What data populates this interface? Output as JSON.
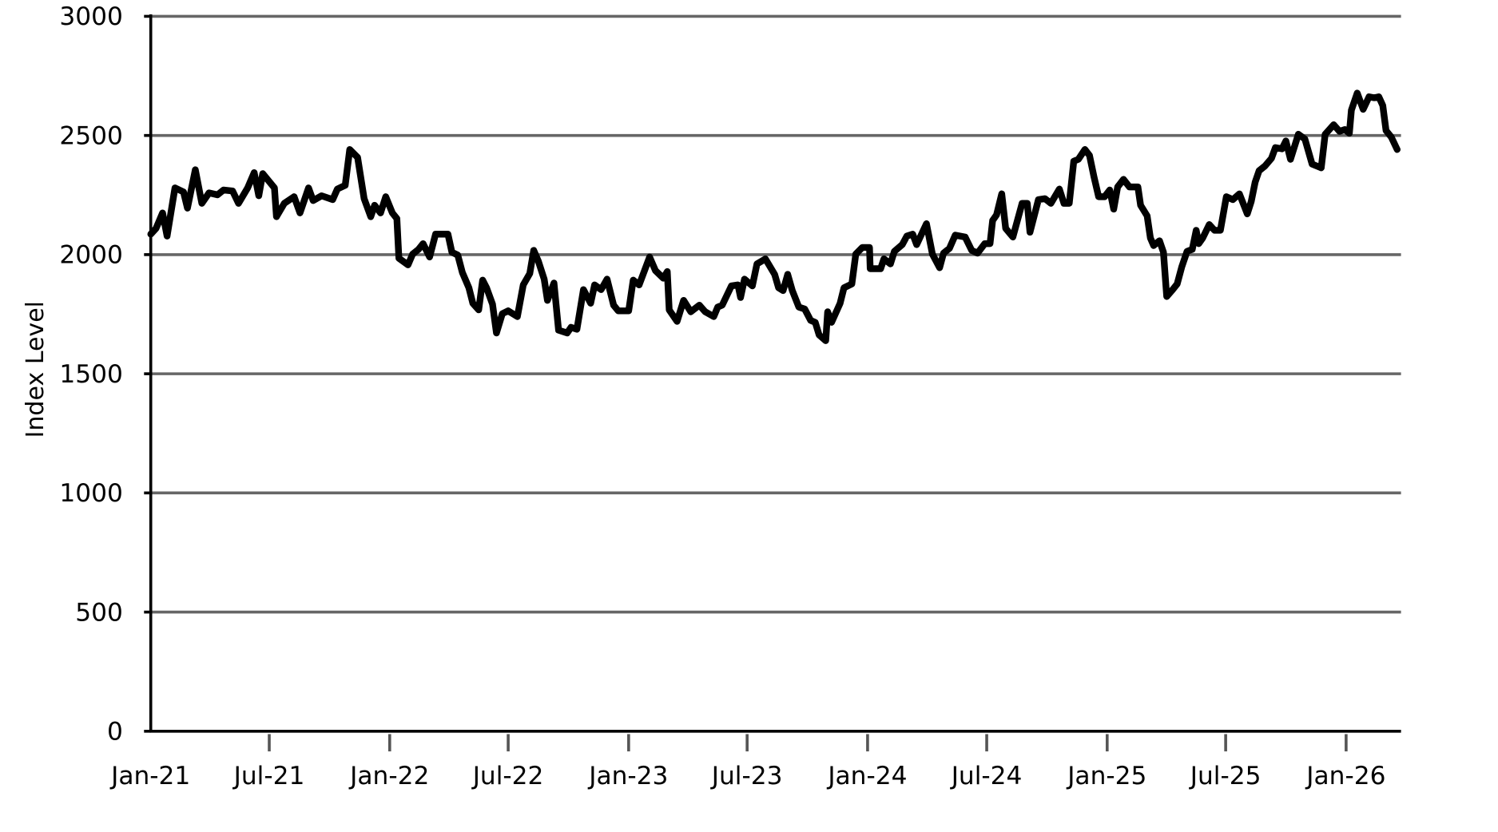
{
  "chart_data": {
    "type": "line",
    "title": "",
    "xlabel": "",
    "ylabel": "Index Level",
    "ylim": [
      0,
      3000
    ],
    "yticks": [
      0,
      500,
      1000,
      1500,
      2000,
      2500,
      3000
    ],
    "xticks": [
      {
        "date": "2021-01-01",
        "label": "Jan-21"
      },
      {
        "date": "2021-07-01",
        "label": "Jul-21"
      },
      {
        "date": "2022-01-01",
        "label": "Jan-22"
      },
      {
        "date": "2022-07-01",
        "label": "Jul-22"
      },
      {
        "date": "2023-01-01",
        "label": "Jan-23"
      },
      {
        "date": "2023-07-01",
        "label": "Jul-23"
      },
      {
        "date": "2024-01-01",
        "label": "Jan-24"
      },
      {
        "date": "2024-07-01",
        "label": "Jul-24"
      },
      {
        "date": "2025-01-01",
        "label": "Jan-25"
      },
      {
        "date": "2025-07-01",
        "label": "Jul-25"
      },
      {
        "date": "2026-01-01",
        "label": "Jan-26"
      }
    ],
    "xlim": [
      "2021-01-01",
      "2026-03-20"
    ],
    "grid": "horizontal",
    "line_color": "#000000",
    "grid_color": "#666666",
    "series": [
      {
        "points": [
          [
            "2021-01-01",
            2086
          ],
          [
            "2021-01-09",
            2110
          ],
          [
            "2021-01-19",
            2175
          ],
          [
            "2021-01-26",
            2078
          ],
          [
            "2021-02-07",
            2280
          ],
          [
            "2021-02-20",
            2263
          ],
          [
            "2021-02-26",
            2195
          ],
          [
            "2021-03-10",
            2356
          ],
          [
            "2021-03-20",
            2215
          ],
          [
            "2021-03-31",
            2259
          ],
          [
            "2021-04-13",
            2251
          ],
          [
            "2021-04-22",
            2271
          ],
          [
            "2021-05-06",
            2267
          ],
          [
            "2021-05-15",
            2215
          ],
          [
            "2021-05-29",
            2280
          ],
          [
            "2021-06-08",
            2344
          ],
          [
            "2021-06-15",
            2247
          ],
          [
            "2021-06-21",
            2340
          ],
          [
            "2021-07-09",
            2280
          ],
          [
            "2021-07-12",
            2159
          ],
          [
            "2021-07-24",
            2215
          ],
          [
            "2021-08-08",
            2243
          ],
          [
            "2021-08-17",
            2175
          ],
          [
            "2021-08-30",
            2280
          ],
          [
            "2021-09-06",
            2227
          ],
          [
            "2021-09-19",
            2247
          ],
          [
            "2021-10-06",
            2231
          ],
          [
            "2021-10-13",
            2275
          ],
          [
            "2021-10-25",
            2291
          ],
          [
            "2021-11-01",
            2441
          ],
          [
            "2021-11-13",
            2408
          ],
          [
            "2021-11-23",
            2235
          ],
          [
            "2021-12-03",
            2159
          ],
          [
            "2021-12-09",
            2207
          ],
          [
            "2021-12-18",
            2175
          ],
          [
            "2021-12-26",
            2243
          ],
          [
            "2022-01-05",
            2175
          ],
          [
            "2022-01-12",
            2151
          ],
          [
            "2022-01-15",
            1985
          ],
          [
            "2022-01-29",
            1957
          ],
          [
            "2022-02-05",
            2002
          ],
          [
            "2022-02-14",
            2022
          ],
          [
            "2022-02-21",
            2046
          ],
          [
            "2022-03-03",
            1990
          ],
          [
            "2022-03-12",
            2086
          ],
          [
            "2022-03-24",
            2086
          ],
          [
            "2022-03-31",
            2086
          ],
          [
            "2022-04-06",
            2010
          ],
          [
            "2022-04-15",
            1998
          ],
          [
            "2022-04-22",
            1925
          ],
          [
            "2022-05-02",
            1861
          ],
          [
            "2022-05-08",
            1796
          ],
          [
            "2022-05-17",
            1768
          ],
          [
            "2022-05-23",
            1893
          ],
          [
            "2022-05-29",
            1861
          ],
          [
            "2022-06-07",
            1792
          ],
          [
            "2022-06-13",
            1671
          ],
          [
            "2022-06-22",
            1752
          ],
          [
            "2022-07-01",
            1764
          ],
          [
            "2022-07-15",
            1740
          ],
          [
            "2022-07-24",
            1873
          ],
          [
            "2022-08-03",
            1921
          ],
          [
            "2022-08-09",
            2018
          ],
          [
            "2022-08-16",
            1973
          ],
          [
            "2022-08-25",
            1897
          ],
          [
            "2022-08-30",
            1808
          ],
          [
            "2022-09-09",
            1881
          ],
          [
            "2022-09-16",
            1683
          ],
          [
            "2022-09-29",
            1671
          ],
          [
            "2022-10-05",
            1695
          ],
          [
            "2022-10-14",
            1687
          ],
          [
            "2022-10-24",
            1853
          ],
          [
            "2022-11-04",
            1796
          ],
          [
            "2022-11-10",
            1873
          ],
          [
            "2022-11-20",
            1853
          ],
          [
            "2022-11-29",
            1897
          ],
          [
            "2022-12-09",
            1788
          ],
          [
            "2022-12-16",
            1764
          ],
          [
            "2023-01-01",
            1764
          ],
          [
            "2023-01-08",
            1893
          ],
          [
            "2023-01-17",
            1873
          ],
          [
            "2023-02-02",
            1990
          ],
          [
            "2023-02-11",
            1933
          ],
          [
            "2023-02-23",
            1901
          ],
          [
            "2023-03-01",
            1929
          ],
          [
            "2023-03-04",
            1768
          ],
          [
            "2023-03-16",
            1720
          ],
          [
            "2023-03-26",
            1808
          ],
          [
            "2023-04-06",
            1760
          ],
          [
            "2023-04-19",
            1788
          ],
          [
            "2023-04-28",
            1760
          ],
          [
            "2023-05-11",
            1740
          ],
          [
            "2023-05-17",
            1780
          ],
          [
            "2023-05-24",
            1788
          ],
          [
            "2023-06-07",
            1869
          ],
          [
            "2023-06-17",
            1873
          ],
          [
            "2023-06-21",
            1820
          ],
          [
            "2023-06-27",
            1897
          ],
          [
            "2023-07-09",
            1869
          ],
          [
            "2023-07-16",
            1961
          ],
          [
            "2023-07-29",
            1982
          ],
          [
            "2023-08-12",
            1917
          ],
          [
            "2023-08-18",
            1861
          ],
          [
            "2023-08-25",
            1849
          ],
          [
            "2023-09-01",
            1917
          ],
          [
            "2023-09-08",
            1849
          ],
          [
            "2023-09-18",
            1780
          ],
          [
            "2023-09-27",
            1772
          ],
          [
            "2023-10-06",
            1724
          ],
          [
            "2023-10-13",
            1716
          ],
          [
            "2023-10-19",
            1663
          ],
          [
            "2023-10-29",
            1639
          ],
          [
            "2023-11-01",
            1760
          ],
          [
            "2023-11-07",
            1716
          ],
          [
            "2023-11-20",
            1796
          ],
          [
            "2023-11-26",
            1861
          ],
          [
            "2023-12-08",
            1877
          ],
          [
            "2023-12-14",
            2002
          ],
          [
            "2023-12-24",
            2030
          ],
          [
            "2024-01-04",
            2030
          ],
          [
            "2024-01-05",
            1941
          ],
          [
            "2024-01-21",
            1941
          ],
          [
            "2024-01-26",
            1982
          ],
          [
            "2024-02-05",
            1961
          ],
          [
            "2024-02-11",
            2014
          ],
          [
            "2024-02-23",
            2042
          ],
          [
            "2024-03-01",
            2078
          ],
          [
            "2024-03-10",
            2086
          ],
          [
            "2024-03-16",
            2042
          ],
          [
            "2024-03-31",
            2130
          ],
          [
            "2024-04-09",
            2002
          ],
          [
            "2024-04-20",
            1945
          ],
          [
            "2024-04-26",
            2006
          ],
          [
            "2024-05-05",
            2026
          ],
          [
            "2024-05-14",
            2082
          ],
          [
            "2024-05-29",
            2074
          ],
          [
            "2024-06-08",
            2018
          ],
          [
            "2024-06-17",
            2006
          ],
          [
            "2024-06-28",
            2046
          ],
          [
            "2024-07-06",
            2046
          ],
          [
            "2024-07-10",
            2143
          ],
          [
            "2024-07-16",
            2167
          ],
          [
            "2024-07-24",
            2255
          ],
          [
            "2024-07-30",
            2110
          ],
          [
            "2024-08-10",
            2074
          ],
          [
            "2024-08-24",
            2215
          ],
          [
            "2024-09-01",
            2215
          ],
          [
            "2024-09-05",
            2094
          ],
          [
            "2024-09-18",
            2231
          ],
          [
            "2024-09-28",
            2235
          ],
          [
            "2024-10-07",
            2215
          ],
          [
            "2024-10-20",
            2275
          ],
          [
            "2024-10-27",
            2215
          ],
          [
            "2024-11-04",
            2215
          ],
          [
            "2024-11-11",
            2392
          ],
          [
            "2024-11-18",
            2400
          ],
          [
            "2024-11-28",
            2441
          ],
          [
            "2024-12-05",
            2416
          ],
          [
            "2024-12-12",
            2324
          ],
          [
            "2024-12-19",
            2243
          ],
          [
            "2024-12-28",
            2243
          ],
          [
            "2025-01-05",
            2271
          ],
          [
            "2025-01-11",
            2191
          ],
          [
            "2025-01-17",
            2284
          ],
          [
            "2025-01-26",
            2316
          ],
          [
            "2025-02-04",
            2284
          ],
          [
            "2025-02-17",
            2284
          ],
          [
            "2025-02-21",
            2207
          ],
          [
            "2025-03-03",
            2163
          ],
          [
            "2025-03-08",
            2070
          ],
          [
            "2025-03-13",
            2038
          ],
          [
            "2025-03-22",
            2058
          ],
          [
            "2025-03-28",
            2010
          ],
          [
            "2025-04-02",
            1824
          ],
          [
            "2025-04-11",
            1853
          ],
          [
            "2025-04-18",
            1877
          ],
          [
            "2025-04-25",
            1949
          ],
          [
            "2025-05-03",
            2014
          ],
          [
            "2025-05-11",
            2022
          ],
          [
            "2025-05-17",
            2102
          ],
          [
            "2025-05-21",
            2046
          ],
          [
            "2025-05-27",
            2070
          ],
          [
            "2025-06-06",
            2126
          ],
          [
            "2025-06-14",
            2102
          ],
          [
            "2025-06-23",
            2102
          ],
          [
            "2025-07-02",
            2243
          ],
          [
            "2025-07-12",
            2231
          ],
          [
            "2025-07-22",
            2255
          ],
          [
            "2025-08-03",
            2171
          ],
          [
            "2025-08-09",
            2223
          ],
          [
            "2025-08-15",
            2304
          ],
          [
            "2025-08-21",
            2352
          ],
          [
            "2025-08-30",
            2372
          ],
          [
            "2025-09-09",
            2404
          ],
          [
            "2025-09-15",
            2449
          ],
          [
            "2025-09-25",
            2444
          ],
          [
            "2025-10-01",
            2477
          ],
          [
            "2025-10-08",
            2400
          ],
          [
            "2025-10-20",
            2505
          ],
          [
            "2025-10-30",
            2485
          ],
          [
            "2025-11-10",
            2380
          ],
          [
            "2025-11-24",
            2364
          ],
          [
            "2025-11-30",
            2505
          ],
          [
            "2025-12-13",
            2545
          ],
          [
            "2025-12-22",
            2517
          ],
          [
            "2025-12-30",
            2525
          ],
          [
            "2026-01-06",
            2509
          ],
          [
            "2026-01-09",
            2606
          ],
          [
            "2026-01-18",
            2678
          ],
          [
            "2026-01-27",
            2610
          ],
          [
            "2026-02-05",
            2662
          ],
          [
            "2026-02-13",
            2658
          ],
          [
            "2026-02-20",
            2662
          ],
          [
            "2026-02-26",
            2626
          ],
          [
            "2026-03-03",
            2521
          ],
          [
            "2026-03-11",
            2493
          ],
          [
            "2026-03-20",
            2441
          ]
        ]
      }
    ]
  }
}
